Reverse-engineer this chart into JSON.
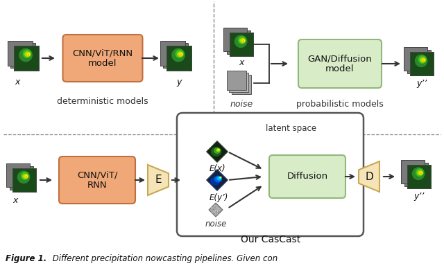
{
  "bg_color": "#ffffff",
  "top_section": {
    "label_det": "deterministic models",
    "label_prob": "probabilistic models",
    "cnn_box": {
      "text": "CNN/ViT/RNN\nmodel",
      "color": "#F0A878",
      "ec": "#c07040"
    },
    "gan_box": {
      "text": "GAN/Diffusion\nmodel",
      "color": "#d8ecc8",
      "ec": "#90b878"
    },
    "x_label": "x",
    "y_label": "y",
    "x2_label": "x",
    "noise_label": "noise",
    "y2prime_label": "y’’"
  },
  "bottom_section": {
    "label_cascast": "Our CasCast",
    "latent_label": "latent space",
    "noise_label": "noise",
    "cnn_box": {
      "text": "CNN/ViT/\nRNN",
      "color": "#F0A878",
      "ec": "#c07040"
    },
    "e_box": {
      "text": "E",
      "color": "#f5e4b8",
      "ec": "#c8a850"
    },
    "diffusion_box": {
      "text": "Diffusion",
      "color": "#d8ecc8",
      "ec": "#90b878"
    },
    "d_box": {
      "text": "D",
      "color": "#f5e4b8",
      "ec": "#c8a850"
    },
    "ex_label": "E(x)",
    "ey_label": "E(y’)",
    "x_label": "x",
    "y2prime_label": "y’’"
  },
  "caption_bold": "Figure 1.",
  "caption_rest": " Different precipitation nowcasting pipelines. Given con"
}
